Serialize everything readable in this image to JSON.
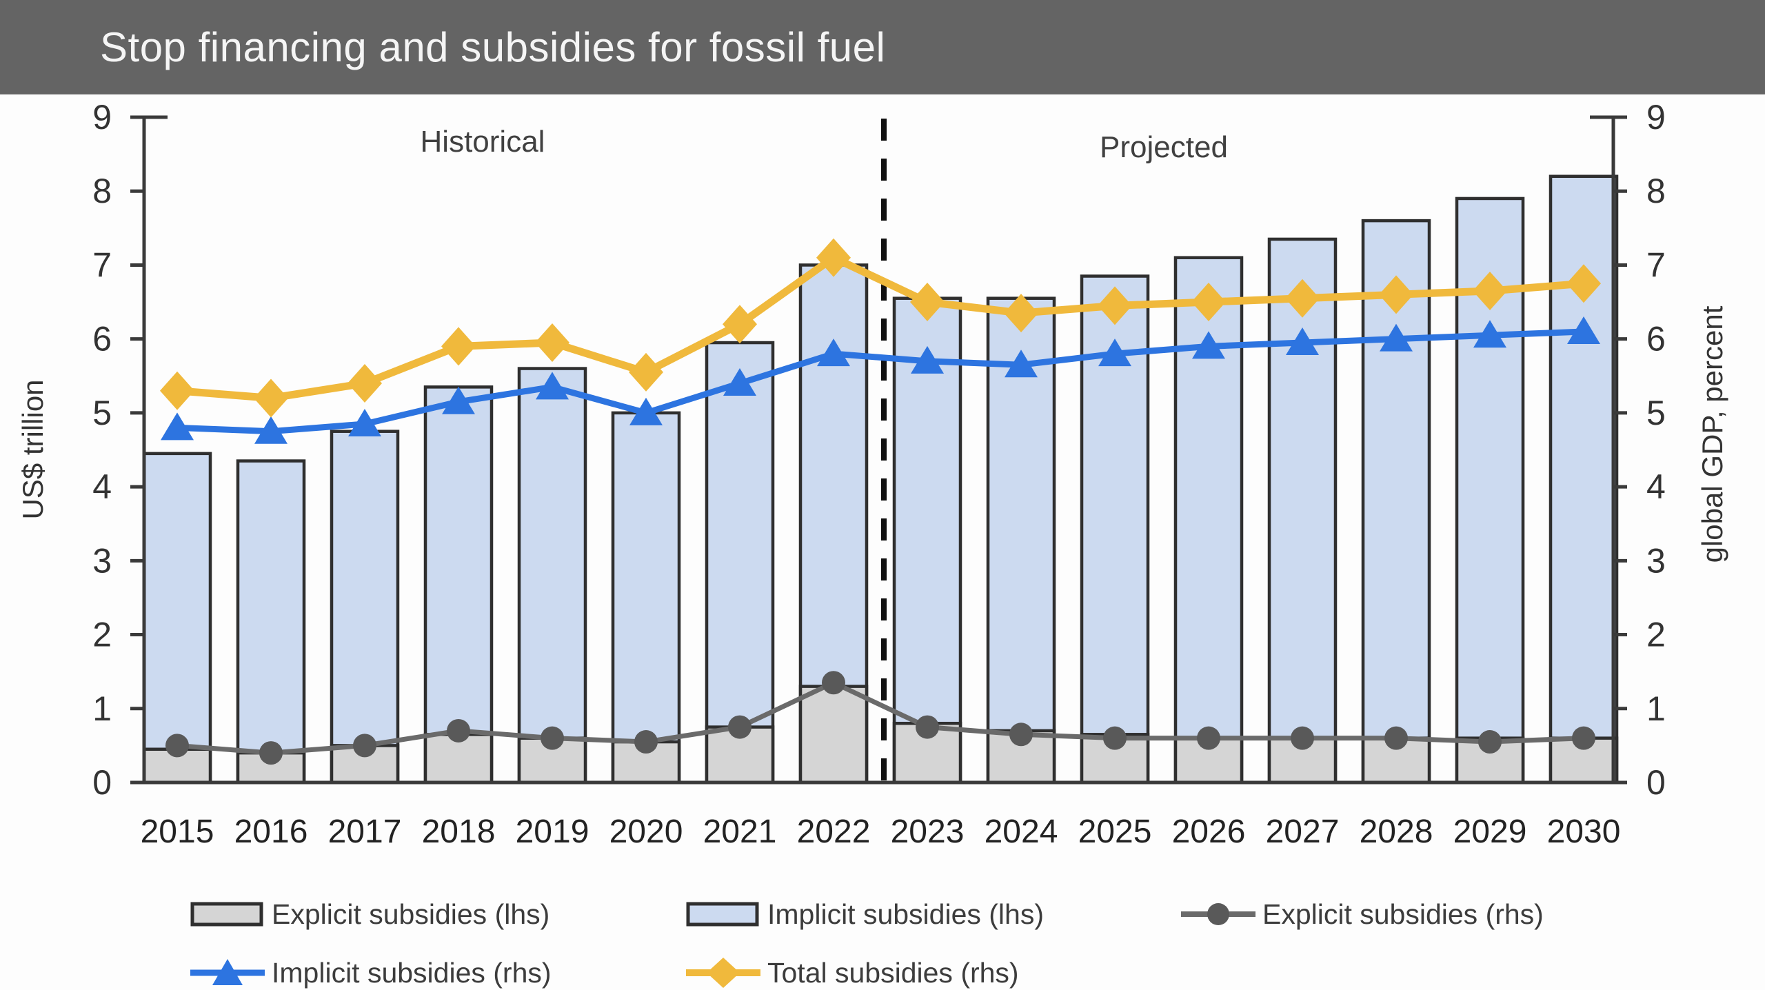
{
  "title_bar": {
    "title": "Stop financing and subsidies for fossil fuel"
  },
  "chart_data": {
    "type": "bar+line combo",
    "categories": [
      "2015",
      "2016",
      "2017",
      "2018",
      "2019",
      "2020",
      "2021",
      "2022",
      "2023",
      "2024",
      "2025",
      "2026",
      "2027",
      "2028",
      "2029",
      "2030"
    ],
    "annotations": {
      "historical_label": "Historical",
      "projected_label": "Projected",
      "divider_between": [
        "2022",
        "2023"
      ]
    },
    "left_axis": {
      "label": "US$ trillion",
      "min": 0,
      "max": 9,
      "ticks": [
        0,
        1,
        2,
        3,
        4,
        5,
        6,
        7,
        8,
        9
      ]
    },
    "right_axis": {
      "label": "global GDP, percent",
      "min": 0,
      "max": 9,
      "ticks": [
        0,
        1,
        2,
        3,
        4,
        5,
        6,
        7,
        8,
        9
      ]
    },
    "bar_series": [
      {
        "name": "Explicit subsidies (lhs)",
        "axis": "left",
        "stack_position": "bottom",
        "values": [
          0.45,
          0.4,
          0.5,
          0.65,
          0.6,
          0.55,
          0.75,
          1.3,
          0.8,
          0.7,
          0.65,
          0.6,
          0.6,
          0.6,
          0.6,
          0.6
        ]
      },
      {
        "name": "Implicit subsidies (lhs)",
        "axis": "left",
        "stack_position": "top",
        "values": [
          4.0,
          3.95,
          4.25,
          4.7,
          5.0,
          4.45,
          5.2,
          5.7,
          5.75,
          5.85,
          6.2,
          6.5,
          6.75,
          7.0,
          7.3,
          7.6
        ]
      }
    ],
    "bar_totals": [
      4.45,
      4.35,
      4.75,
      5.35,
      5.6,
      5.0,
      5.95,
      7.0,
      6.55,
      6.55,
      6.85,
      7.1,
      7.35,
      7.6,
      7.9,
      8.2
    ],
    "line_series": [
      {
        "name": "Explicit subsidies (rhs)",
        "axis": "right",
        "marker": "circle",
        "values": [
          0.5,
          0.4,
          0.5,
          0.7,
          0.6,
          0.55,
          0.75,
          1.35,
          0.75,
          0.65,
          0.6,
          0.6,
          0.6,
          0.6,
          0.55,
          0.6
        ]
      },
      {
        "name": "Implicit subsidies (rhs)",
        "axis": "right",
        "marker": "triangle",
        "values": [
          4.8,
          4.75,
          4.85,
          5.15,
          5.35,
          5.0,
          5.4,
          5.8,
          5.7,
          5.65,
          5.8,
          5.9,
          5.95,
          6.0,
          6.05,
          6.1
        ]
      },
      {
        "name": "Total subsidies (rhs)",
        "axis": "right",
        "marker": "diamond",
        "values": [
          5.3,
          5.2,
          5.4,
          5.9,
          5.95,
          5.55,
          6.2,
          7.1,
          6.5,
          6.35,
          6.45,
          6.5,
          6.55,
          6.6,
          6.65,
          6.75
        ]
      }
    ],
    "legend_position": "bottom",
    "grid": false
  },
  "legend": {
    "items": [
      {
        "label": "Explicit subsidies (lhs)",
        "marker": "gray-bar"
      },
      {
        "label": "Implicit subsidies (lhs)",
        "marker": "blue-bar"
      },
      {
        "label": "Explicit subsidies (rhs)",
        "marker": "gray-line-circle"
      },
      {
        "label": "Implicit subsidies (rhs)",
        "marker": "blue-line-triangle"
      },
      {
        "label": "Total subsidies (rhs)",
        "marker": "yellow-line-diamond"
      }
    ]
  },
  "colors": {
    "header_bg": "#646464",
    "title_text": "#f5f5f5",
    "axis": "#3a3a3a",
    "text": "#3c3c3c",
    "explicit_bar_fill": "#d5d5d5",
    "implicit_bar_fill": "#ccdaf0",
    "bar_border": "#2f2f2f",
    "explicit_line": "#6a6a6a",
    "explicit_marker": "#595959",
    "implicit_line": "#2d74e0",
    "total_line": "#f0b93c",
    "divider": "#111111"
  }
}
